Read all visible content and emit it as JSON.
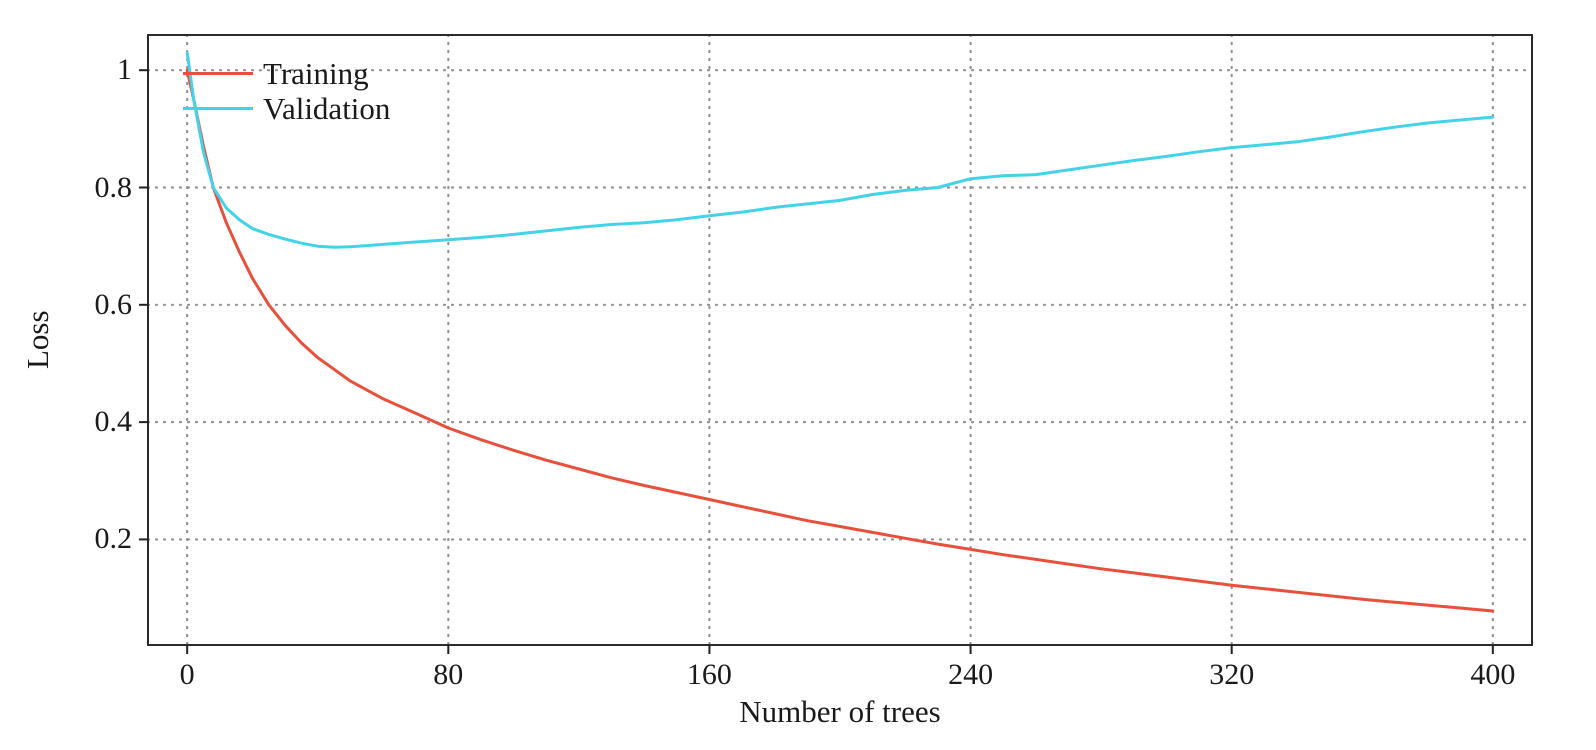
{
  "chart_data": {
    "type": "line",
    "title": "",
    "xlabel": "Number of trees",
    "ylabel": "Loss",
    "xlim": [
      -12,
      412
    ],
    "ylim": [
      0.02,
      1.06
    ],
    "grid": true,
    "legend_position": "top-left-inside",
    "x_ticks": {
      "values": [
        0,
        80,
        160,
        240,
        320,
        400
      ],
      "labels": [
        "0",
        "80",
        "160",
        "240",
        "320",
        "400"
      ]
    },
    "y_ticks": {
      "values": [
        0.2,
        0.4,
        0.6,
        0.8,
        1.0
      ],
      "labels": [
        "0.2",
        "0.4",
        "0.6",
        "0.8",
        "1"
      ]
    },
    "x": [
      0,
      2,
      5,
      8,
      12,
      16,
      20,
      25,
      30,
      35,
      40,
      45,
      50,
      55,
      60,
      70,
      80,
      90,
      100,
      110,
      120,
      130,
      140,
      150,
      160,
      170,
      180,
      190,
      200,
      210,
      220,
      230,
      240,
      250,
      260,
      270,
      280,
      290,
      300,
      310,
      320,
      330,
      340,
      350,
      360,
      370,
      380,
      390,
      400
    ],
    "series": [
      {
        "name": "Training",
        "color": "#e8503c",
        "values": [
          1.0,
          0.95,
          0.87,
          0.8,
          0.74,
          0.69,
          0.645,
          0.6,
          0.565,
          0.535,
          0.51,
          0.49,
          0.47,
          0.455,
          0.44,
          0.415,
          0.39,
          0.37,
          0.352,
          0.335,
          0.32,
          0.305,
          0.292,
          0.28,
          0.268,
          0.256,
          0.244,
          0.232,
          0.222,
          0.212,
          0.202,
          0.192,
          0.183,
          0.174,
          0.166,
          0.158,
          0.15,
          0.143,
          0.136,
          0.129,
          0.122,
          0.116,
          0.11,
          0.104,
          0.098,
          0.093,
          0.088,
          0.083,
          0.078
        ]
      },
      {
        "name": "Validation",
        "color": "#43d3e8",
        "values": [
          1.03,
          0.95,
          0.86,
          0.8,
          0.765,
          0.745,
          0.73,
          0.72,
          0.712,
          0.705,
          0.7,
          0.698,
          0.699,
          0.701,
          0.703,
          0.707,
          0.711,
          0.715,
          0.72,
          0.726,
          0.732,
          0.737,
          0.74,
          0.745,
          0.752,
          0.758,
          0.766,
          0.772,
          0.778,
          0.788,
          0.795,
          0.8,
          0.815,
          0.82,
          0.822,
          0.83,
          0.838,
          0.846,
          0.853,
          0.861,
          0.868,
          0.873,
          0.878,
          0.886,
          0.895,
          0.903,
          0.91,
          0.915,
          0.92
        ]
      }
    ]
  }
}
